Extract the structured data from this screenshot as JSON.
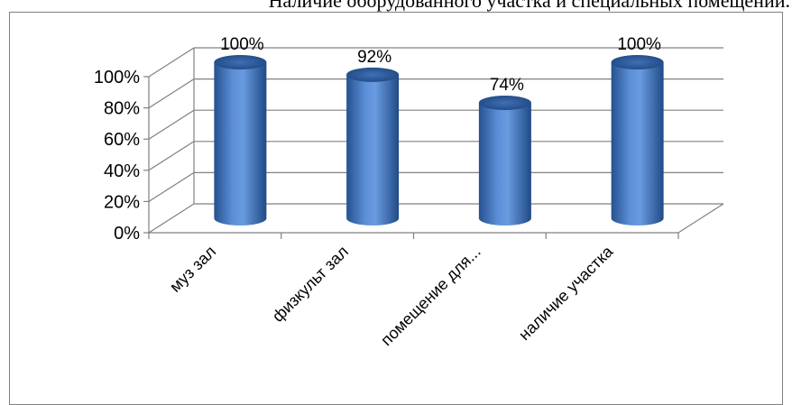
{
  "chart_data": {
    "type": "bar",
    "title": "Наличие оборудованного участка и специальных помещений.",
    "categories": [
      "муз зал",
      "физкульт зал",
      "помещение для...",
      "наличие участка"
    ],
    "values": [
      100,
      92,
      74,
      100
    ],
    "data_labels": [
      "100%",
      "92%",
      "74%",
      "100%"
    ],
    "ylim": [
      0,
      100
    ],
    "yticks": [
      0,
      20,
      40,
      60,
      80,
      100
    ],
    "ytick_labels": [
      "0%",
      "20%",
      "40%",
      "60%",
      "80%",
      "100%"
    ],
    "grid": true,
    "legend": "none",
    "style": "3d-cylinder",
    "bar_color": "#4a7ec8"
  }
}
